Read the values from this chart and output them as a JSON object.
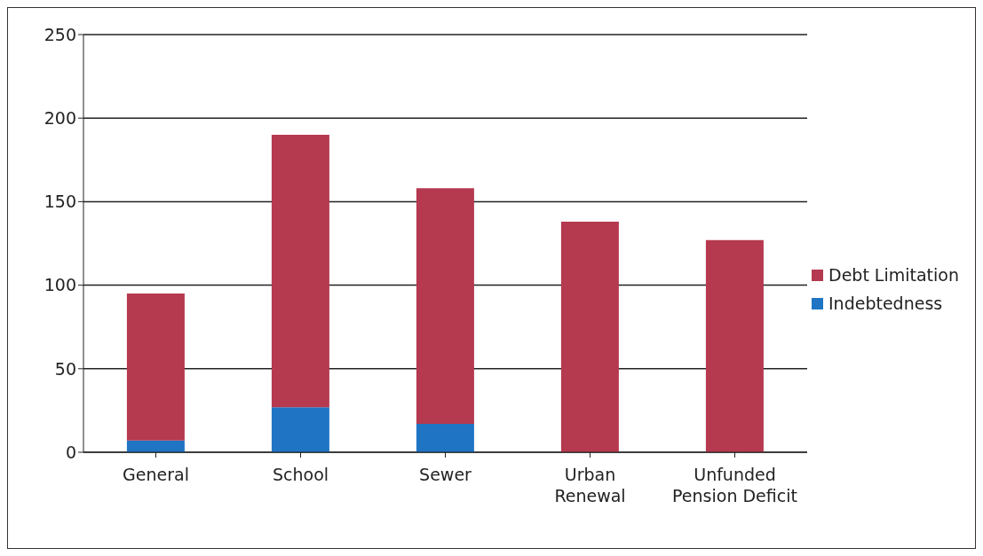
{
  "chart_data": {
    "type": "bar",
    "stacked": true,
    "categories": [
      "General",
      "School",
      "Sewer",
      "Urban Renewal",
      "Unfunded Pension Deficit"
    ],
    "series": [
      {
        "name": "Indebtedness",
        "color": "#1f74c4",
        "values": [
          7,
          27,
          17,
          0,
          0
        ]
      },
      {
        "name": "Debt Limitation",
        "color": "#b5394f",
        "values": [
          88,
          163,
          141,
          138,
          127
        ]
      }
    ],
    "ylim": [
      0,
      250
    ],
    "yticks": [
      0,
      50,
      100,
      150,
      200,
      250
    ],
    "grid": "y",
    "legend": "right"
  }
}
